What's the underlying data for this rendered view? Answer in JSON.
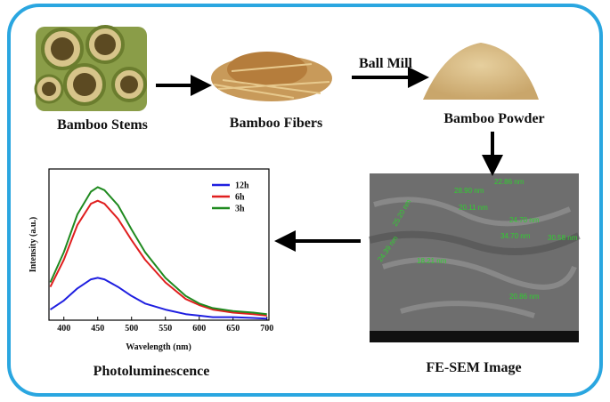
{
  "labels": {
    "stems": "Bamboo Stems",
    "fibers": "Bamboo Fibers",
    "ball_mill": "Ball Mill",
    "powder": "Bamboo Powder",
    "sem": "FE-SEM Image",
    "pl": "Photoluminescence"
  },
  "sem_labels": [
    "22.86 nm",
    "28.90 nm",
    "20.11 nm",
    "24.70 nm",
    "25.20 nm",
    "34.70 nm",
    "30.58 nm",
    "24.39 nm",
    "18.21 nm",
    "20.86 nm"
  ],
  "chart_data": {
    "type": "line",
    "x_label": "Wavelength (nm)",
    "y_label": "Intensity (a.u.)",
    "x": [
      380,
      400,
      420,
      440,
      450,
      460,
      480,
      500,
      520,
      550,
      580,
      600,
      620,
      650,
      680,
      700
    ],
    "series": [
      {
        "name": "12h",
        "color": "#1f1fe0",
        "values": [
          7,
          13,
          21,
          27,
          28,
          27,
          22,
          16,
          11,
          7,
          4,
          3,
          2,
          2,
          1.5,
          1
        ]
      },
      {
        "name": "6h",
        "color": "#e01f1f",
        "values": [
          22,
          40,
          63,
          77,
          79,
          77,
          67,
          53,
          40,
          25,
          14,
          10,
          7,
          5,
          4,
          3
        ]
      },
      {
        "name": "3h",
        "color": "#1f8a1f",
        "values": [
          25,
          45,
          70,
          85,
          88,
          86,
          76,
          60,
          45,
          28,
          16,
          11,
          8,
          6,
          5,
          4
        ]
      }
    ],
    "xlim": [
      378,
      703
    ],
    "ylim": [
      0,
      100
    ],
    "xticks": [
      400,
      450,
      500,
      550,
      600,
      650,
      700
    ],
    "legend": "upper right"
  }
}
